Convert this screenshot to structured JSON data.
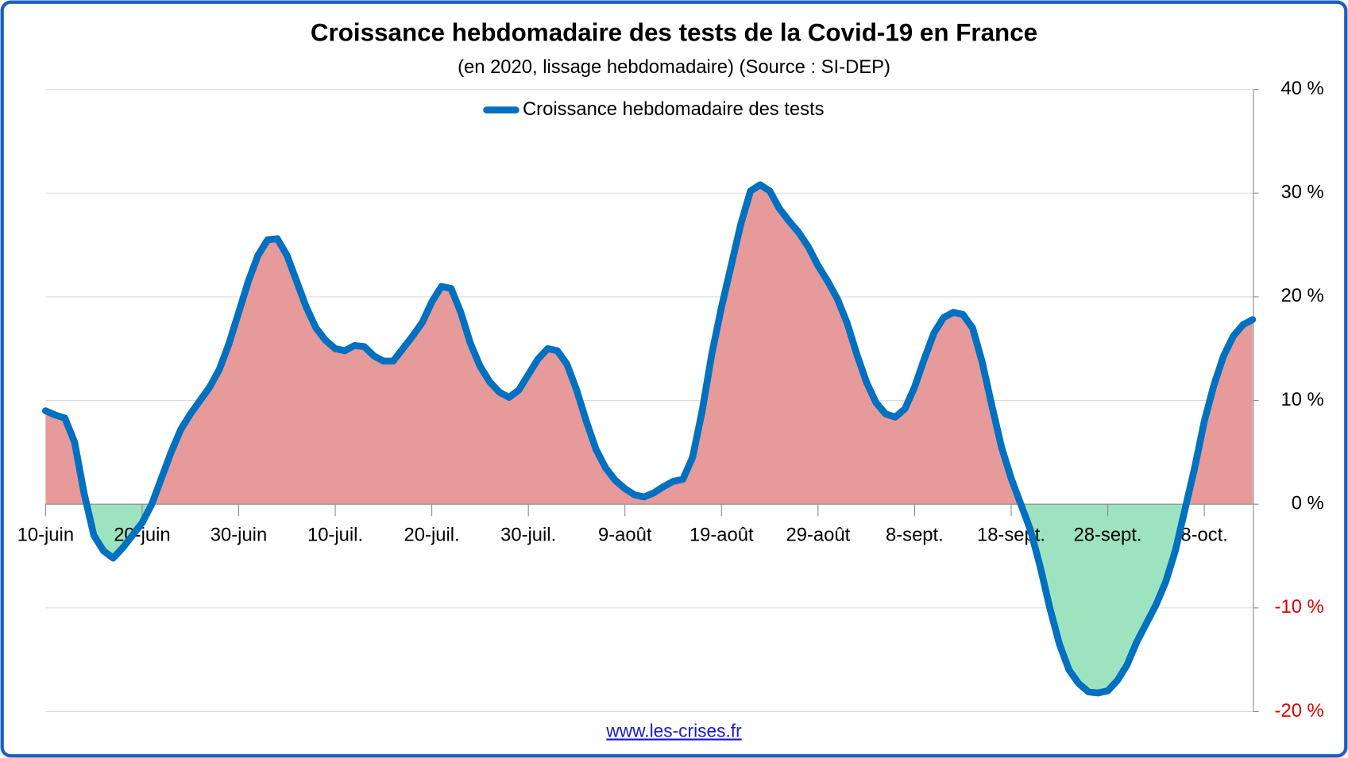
{
  "chart_data": {
    "type": "line",
    "title": "Croissance hebdomadaire des tests de la Covid-19 en France",
    "subtitle": "(en 2020, lissage hebdomadaire) (Source : SI-DEP)",
    "source": "www.les-crises.fr",
    "categories": [
      "10-juin",
      null,
      null,
      null,
      null,
      null,
      null,
      null,
      null,
      null,
      "20-juin",
      null,
      null,
      null,
      null,
      null,
      null,
      null,
      null,
      null,
      "30-juin",
      null,
      null,
      null,
      null,
      null,
      null,
      null,
      null,
      null,
      "10-juil.",
      null,
      null,
      null,
      null,
      null,
      null,
      null,
      null,
      null,
      "20-juil.",
      null,
      null,
      null,
      null,
      null,
      null,
      null,
      null,
      null,
      "30-juil.",
      null,
      null,
      null,
      null,
      null,
      null,
      null,
      null,
      null,
      "9-août",
      null,
      null,
      null,
      null,
      null,
      null,
      null,
      null,
      null,
      "19-août",
      null,
      null,
      null,
      null,
      null,
      null,
      null,
      null,
      null,
      "29-août",
      null,
      null,
      null,
      null,
      null,
      null,
      null,
      null,
      null,
      "8-sept.",
      null,
      null,
      null,
      null,
      null,
      null,
      null,
      null,
      null,
      "18-sept.",
      null,
      null,
      null,
      null,
      null,
      null,
      null,
      null,
      null,
      "28-sept.",
      null,
      null,
      null,
      null,
      null,
      null,
      null,
      null,
      null,
      "8-oct.",
      null,
      null,
      null,
      null,
      null
    ],
    "series": [
      {
        "name": "Croissance hebdomadaire des tests",
        "color": "#0070c0",
        "values": [
          9.0,
          8.6,
          8.3,
          6,
          1,
          -3,
          -4.5,
          -5.2,
          -4.2,
          -3,
          -1.8,
          0,
          2.5,
          5,
          7.2,
          8.7,
          10,
          11.3,
          13,
          15.5,
          18.5,
          21.5,
          24,
          25.5,
          25.6,
          24,
          21.5,
          19,
          17,
          15.8,
          15,
          14.8,
          15.3,
          15.2,
          14.3,
          13.8,
          13.8,
          15,
          16.2,
          17.5,
          19.5,
          21,
          20.8,
          18.5,
          15.5,
          13.3,
          11.8,
          10.8,
          10.3,
          11,
          12.5,
          14,
          15,
          14.8,
          13.5,
          11,
          8,
          5.3,
          3.5,
          2.3,
          1.5,
          0.9,
          0.7,
          1.1,
          1.7,
          2.2,
          2.4,
          4.5,
          9,
          14.5,
          19,
          23,
          27,
          30.2,
          30.8,
          30.2,
          28.5,
          27.3,
          26.2,
          24.8,
          23,
          21.5,
          19.8,
          17.5,
          14.5,
          11.8,
          9.8,
          8.7,
          8.4,
          9.2,
          11.3,
          14,
          16.5,
          18,
          18.5,
          18.3,
          17,
          13.7,
          9.5,
          5.5,
          2.5,
          0,
          -2.5,
          -6,
          -10,
          -13.5,
          -16,
          -17.3,
          -18.1,
          -18.2,
          -18,
          -17,
          -15.5,
          -13.3,
          -11.5,
          -9.7,
          -7.5,
          -4.5,
          -0.5,
          3.5,
          8,
          11.5,
          14.3,
          16.2,
          17.3,
          17.8
        ]
      }
    ],
    "positive_fill": "#e69a9a",
    "negative_fill": "#9ee3bf",
    "negative_tick_color": "#e00000",
    "ylim": [
      -20,
      40
    ],
    "yticks": [
      {
        "value": -20,
        "label": "-20 %"
      },
      {
        "value": -10,
        "label": "-10 %"
      },
      {
        "value": 0,
        "label": "0 %"
      },
      {
        "value": 10,
        "label": "10 %"
      },
      {
        "value": 20,
        "label": "20 %"
      },
      {
        "value": 30,
        "label": "30 %"
      },
      {
        "value": 40,
        "label": "40 %"
      }
    ],
    "y_axis_side": "right",
    "grid": true,
    "legend": "top"
  }
}
